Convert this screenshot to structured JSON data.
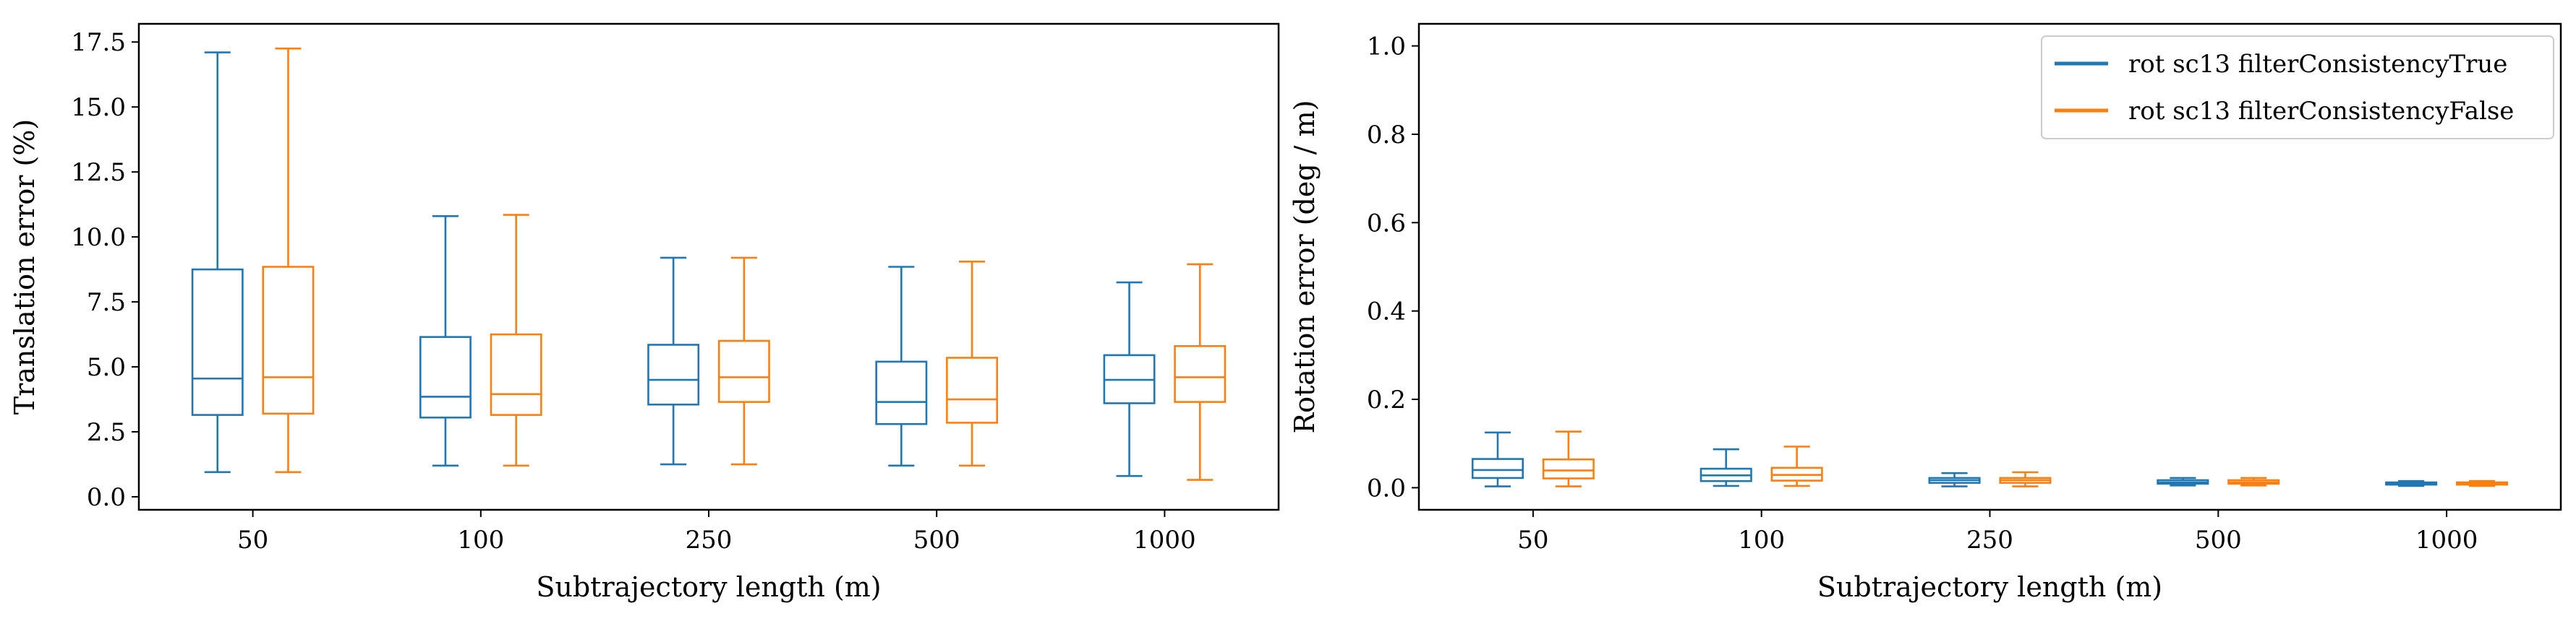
{
  "chart_data": [
    {
      "type": "box",
      "title": "",
      "xlabel": "Subtrajectory length (m)",
      "ylabel": "Translation error (%)",
      "categories": [
        "50",
        "100",
        "250",
        "500",
        "1000"
      ],
      "ylim": [
        -0.5,
        18.2
      ],
      "yticks": [
        "0.0",
        "2.5",
        "5.0",
        "7.5",
        "10.0",
        "12.5",
        "15.0",
        "17.5"
      ],
      "grid": false,
      "series": [
        {
          "color": "#1f77b4",
          "boxes": [
            {
              "whislo": 0.95,
              "q1": 3.15,
              "med": 4.55,
              "q3": 8.75,
              "whishi": 17.1
            },
            {
              "whislo": 1.2,
              "q1": 3.05,
              "med": 3.85,
              "q3": 6.15,
              "whishi": 10.8
            },
            {
              "whislo": 1.25,
              "q1": 3.55,
              "med": 4.5,
              "q3": 5.85,
              "whishi": 9.2
            },
            {
              "whislo": 1.2,
              "q1": 2.8,
              "med": 3.65,
              "q3": 5.2,
              "whishi": 8.85
            },
            {
              "whislo": 0.8,
              "q1": 3.6,
              "med": 4.5,
              "q3": 5.45,
              "whishi": 8.25
            }
          ]
        },
        {
          "color": "#ff7f0e",
          "boxes": [
            {
              "whislo": 0.95,
              "q1": 3.2,
              "med": 4.6,
              "q3": 8.85,
              "whishi": 17.25
            },
            {
              "whislo": 1.2,
              "q1": 3.15,
              "med": 3.95,
              "q3": 6.25,
              "whishi": 10.85
            },
            {
              "whislo": 1.25,
              "q1": 3.65,
              "med": 4.6,
              "q3": 6.0,
              "whishi": 9.2
            },
            {
              "whislo": 1.2,
              "q1": 2.85,
              "med": 3.75,
              "q3": 5.35,
              "whishi": 9.05
            },
            {
              "whislo": 0.65,
              "q1": 3.65,
              "med": 4.6,
              "q3": 5.8,
              "whishi": 8.95
            }
          ]
        }
      ]
    },
    {
      "type": "box",
      "title": "",
      "xlabel": "Subtrajectory length (m)",
      "ylabel": "Rotation error (deg / m)",
      "categories": [
        "50",
        "100",
        "250",
        "500",
        "1000"
      ],
      "ylim": [
        -0.05,
        1.05
      ],
      "yticks": [
        "0.0",
        "0.2",
        "0.4",
        "0.6",
        "0.8",
        "1.0"
      ],
      "grid": false,
      "legend": "top-right",
      "series": [
        {
          "name": "rot sc13 filterConsistencyTrue",
          "color": "#1f77b4",
          "boxes": [
            {
              "whislo": 0.003,
              "q1": 0.022,
              "med": 0.04,
              "q3": 0.065,
              "whishi": 0.125
            },
            {
              "whislo": 0.004,
              "q1": 0.015,
              "med": 0.028,
              "q3": 0.043,
              "whishi": 0.087
            },
            {
              "whislo": 0.003,
              "q1": 0.011,
              "med": 0.017,
              "q3": 0.022,
              "whishi": 0.033
            },
            {
              "whislo": 0.005,
              "q1": 0.009,
              "med": 0.012,
              "q3": 0.017,
              "whishi": 0.022
            },
            {
              "whislo": 0.004,
              "q1": 0.007,
              "med": 0.009,
              "q3": 0.012,
              "whishi": 0.015
            }
          ]
        },
        {
          "name": "rot sc13 filterConsistencyFalse",
          "color": "#ff7f0e",
          "boxes": [
            {
              "whislo": 0.003,
              "q1": 0.021,
              "med": 0.039,
              "q3": 0.064,
              "whishi": 0.127
            },
            {
              "whislo": 0.004,
              "q1": 0.016,
              "med": 0.029,
              "q3": 0.045,
              "whishi": 0.093
            },
            {
              "whislo": 0.003,
              "q1": 0.011,
              "med": 0.017,
              "q3": 0.022,
              "whishi": 0.035
            },
            {
              "whislo": 0.005,
              "q1": 0.009,
              "med": 0.012,
              "q3": 0.017,
              "whishi": 0.022
            },
            {
              "whislo": 0.004,
              "q1": 0.007,
              "med": 0.009,
              "q3": 0.012,
              "whishi": 0.015
            }
          ]
        }
      ]
    }
  ]
}
